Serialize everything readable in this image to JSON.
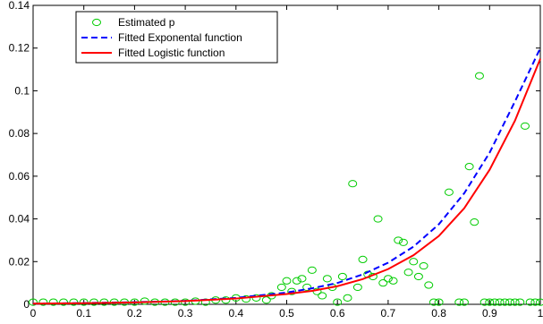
{
  "chart_data": {
    "type": "line",
    "title": "",
    "xlabel": "",
    "ylabel": "",
    "xlim": [
      0,
      1
    ],
    "ylim": [
      0,
      0.14
    ],
    "grid": false,
    "legend_position": "top-left",
    "x_ticks": [
      "0",
      "0.1",
      "0.2",
      "0.3",
      "0.4",
      "0.5",
      "0.6",
      "0.7",
      "0.8",
      "0.9",
      "1"
    ],
    "y_ticks": [
      "0",
      "0.02",
      "0.04",
      "0.06",
      "0.08",
      "0.1",
      "0.12",
      "0.14"
    ],
    "series": [
      {
        "name": "Estimated p",
        "kind": "scatter",
        "color": "#00cc00",
        "marker": "circle",
        "points": [
          [
            0.0,
            0.001
          ],
          [
            0.02,
            0.001
          ],
          [
            0.04,
            0.001
          ],
          [
            0.06,
            0.001
          ],
          [
            0.08,
            0.001
          ],
          [
            0.1,
            0.001
          ],
          [
            0.12,
            0.001
          ],
          [
            0.14,
            0.001
          ],
          [
            0.16,
            0.001
          ],
          [
            0.18,
            0.001
          ],
          [
            0.2,
            0.001
          ],
          [
            0.22,
            0.0015
          ],
          [
            0.24,
            0.001
          ],
          [
            0.26,
            0.001
          ],
          [
            0.28,
            0.001
          ],
          [
            0.3,
            0.001
          ],
          [
            0.32,
            0.0015
          ],
          [
            0.34,
            0.001
          ],
          [
            0.36,
            0.002
          ],
          [
            0.38,
            0.002
          ],
          [
            0.4,
            0.003
          ],
          [
            0.42,
            0.0025
          ],
          [
            0.44,
            0.003
          ],
          [
            0.46,
            0.002
          ],
          [
            0.47,
            0.004
          ],
          [
            0.49,
            0.008
          ],
          [
            0.5,
            0.011
          ],
          [
            0.51,
            0.006
          ],
          [
            0.52,
            0.011
          ],
          [
            0.53,
            0.012
          ],
          [
            0.54,
            0.008
          ],
          [
            0.55,
            0.016
          ],
          [
            0.56,
            0.006
          ],
          [
            0.57,
            0.004
          ],
          [
            0.58,
            0.012
          ],
          [
            0.59,
            0.008
          ],
          [
            0.6,
            0.001
          ],
          [
            0.61,
            0.013
          ],
          [
            0.62,
            0.003
          ],
          [
            0.63,
            0.0565
          ],
          [
            0.64,
            0.008
          ],
          [
            0.65,
            0.021
          ],
          [
            0.66,
            0.014
          ],
          [
            0.67,
            0.013
          ],
          [
            0.68,
            0.04
          ],
          [
            0.69,
            0.01
          ],
          [
            0.7,
            0.012
          ],
          [
            0.71,
            0.011
          ],
          [
            0.72,
            0.03
          ],
          [
            0.73,
            0.029
          ],
          [
            0.74,
            0.015
          ],
          [
            0.75,
            0.02
          ],
          [
            0.76,
            0.013
          ],
          [
            0.77,
            0.018
          ],
          [
            0.78,
            0.009
          ],
          [
            0.79,
            0.001
          ],
          [
            0.8,
            0.001
          ],
          [
            0.82,
            0.0525
          ],
          [
            0.84,
            0.001
          ],
          [
            0.85,
            0.001
          ],
          [
            0.86,
            0.0645
          ],
          [
            0.87,
            0.0385
          ],
          [
            0.88,
            0.107
          ],
          [
            0.89,
            0.001
          ],
          [
            0.9,
            0.001
          ],
          [
            0.91,
            0.001
          ],
          [
            0.92,
            0.001
          ],
          [
            0.93,
            0.001
          ],
          [
            0.94,
            0.001
          ],
          [
            0.95,
            0.001
          ],
          [
            0.96,
            0.001
          ],
          [
            0.97,
            0.0835
          ],
          [
            0.98,
            0.001
          ],
          [
            0.99,
            0.001
          ],
          [
            1.0,
            0.001
          ]
        ]
      },
      {
        "name": "Fitted Exponental function",
        "kind": "line",
        "color": "#0000ff",
        "dash": "dashed",
        "points": [
          [
            0.0,
            0.0003
          ],
          [
            0.1,
            0.0006
          ],
          [
            0.2,
            0.001
          ],
          [
            0.3,
            0.0016
          ],
          [
            0.4,
            0.003
          ],
          [
            0.5,
            0.0055
          ],
          [
            0.55,
            0.0075
          ],
          [
            0.6,
            0.01
          ],
          [
            0.65,
            0.014
          ],
          [
            0.7,
            0.0195
          ],
          [
            0.75,
            0.027
          ],
          [
            0.8,
            0.0375
          ],
          [
            0.85,
            0.052
          ],
          [
            0.9,
            0.071
          ],
          [
            0.95,
            0.095
          ],
          [
            1.0,
            0.12
          ]
        ]
      },
      {
        "name": "Fitted Logistic function",
        "kind": "line",
        "color": "#ff0000",
        "dash": "solid",
        "points": [
          [
            0.0,
            0.0003
          ],
          [
            0.1,
            0.0005
          ],
          [
            0.2,
            0.0009
          ],
          [
            0.3,
            0.0015
          ],
          [
            0.4,
            0.0027
          ],
          [
            0.5,
            0.0048
          ],
          [
            0.55,
            0.0063
          ],
          [
            0.6,
            0.0085
          ],
          [
            0.65,
            0.0118
          ],
          [
            0.7,
            0.0165
          ],
          [
            0.75,
            0.023
          ],
          [
            0.8,
            0.032
          ],
          [
            0.85,
            0.045
          ],
          [
            0.9,
            0.063
          ],
          [
            0.95,
            0.086
          ],
          [
            1.0,
            0.115
          ]
        ]
      }
    ]
  }
}
